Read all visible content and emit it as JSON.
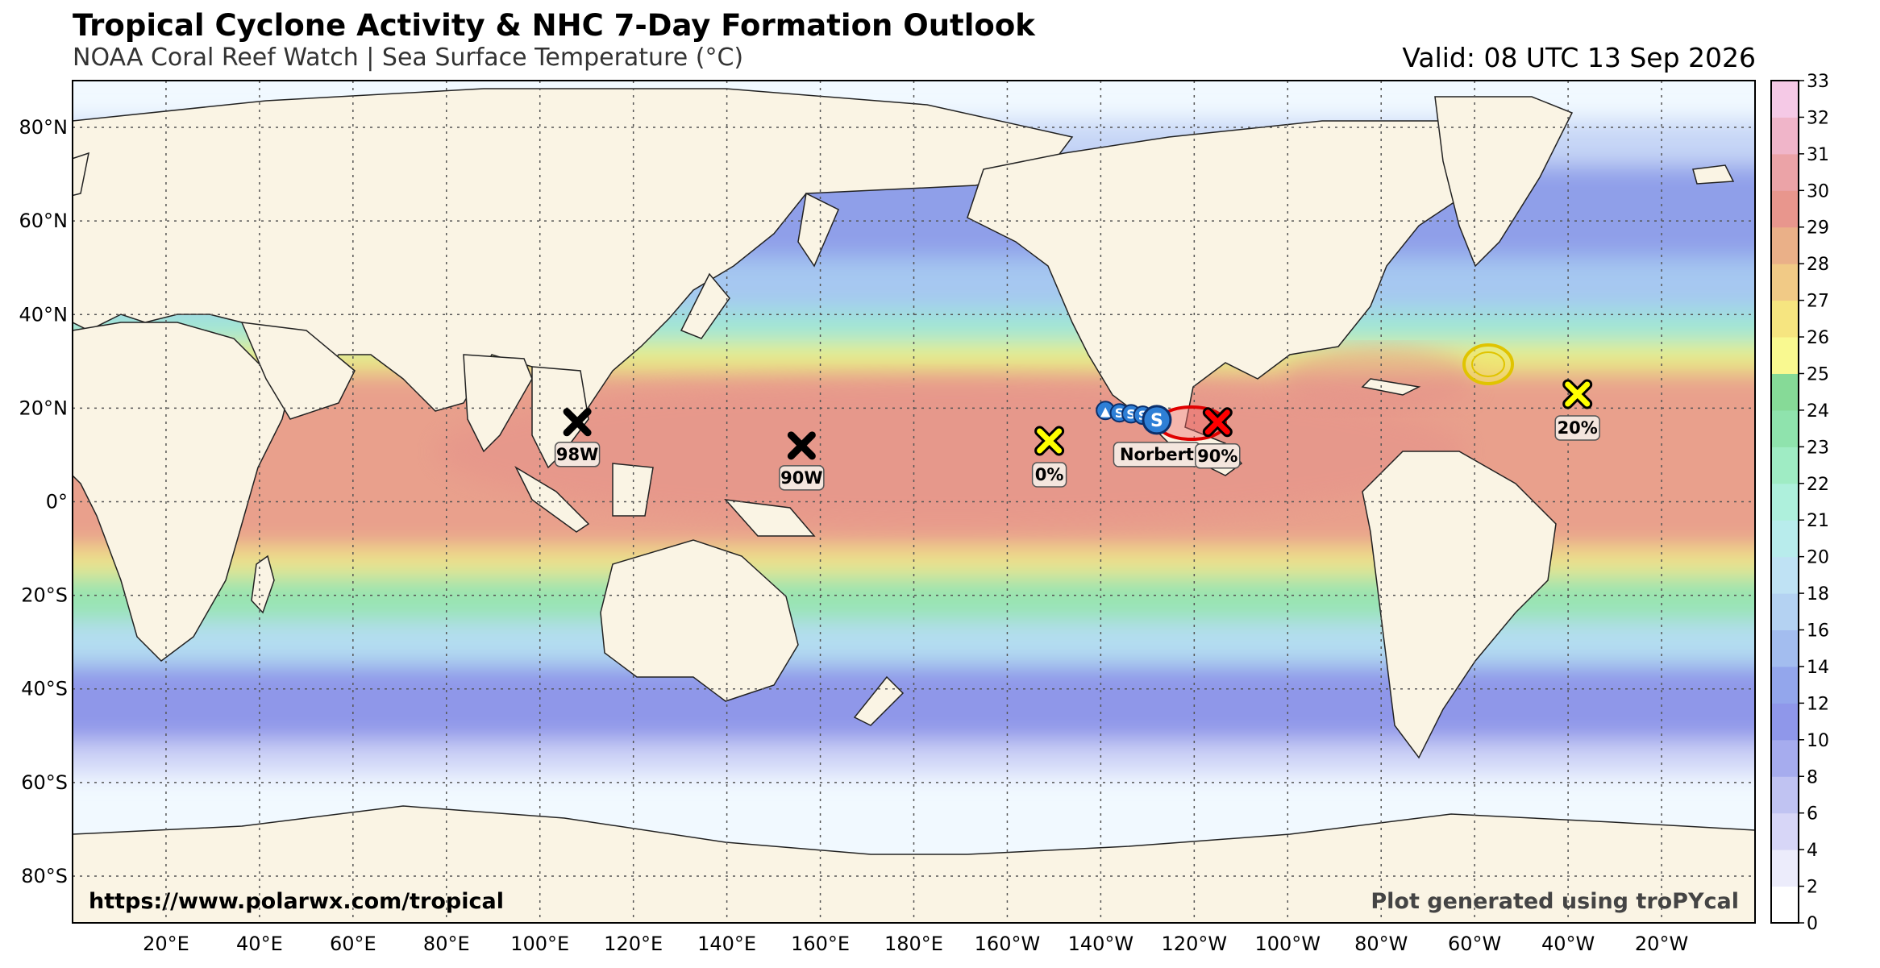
{
  "header": {
    "title": "Tropical Cyclone Activity & NHC 7-Day Formation Outlook",
    "subtitle": "NOAA Coral Reef Watch | Sea Surface Temperature (°C)",
    "valid": "Valid: 08 UTC 13 Sep 2026"
  },
  "map": {
    "projection": "equirectangular",
    "lon_range": [
      0,
      360
    ],
    "lat_range": [
      -90,
      90
    ],
    "lon_ticks": [
      {
        "lon": 20,
        "label": "20°E"
      },
      {
        "lon": 40,
        "label": "40°E"
      },
      {
        "lon": 60,
        "label": "60°E"
      },
      {
        "lon": 80,
        "label": "80°E"
      },
      {
        "lon": 100,
        "label": "100°E"
      },
      {
        "lon": 120,
        "label": "120°E"
      },
      {
        "lon": 140,
        "label": "140°E"
      },
      {
        "lon": 160,
        "label": "160°E"
      },
      {
        "lon": 180,
        "label": "180°E"
      },
      {
        "lon": 200,
        "label": "160°W"
      },
      {
        "lon": 220,
        "label": "140°W"
      },
      {
        "lon": 240,
        "label": "120°W"
      },
      {
        "lon": 260,
        "label": "100°W"
      },
      {
        "lon": 280,
        "label": "80°W"
      },
      {
        "lon": 300,
        "label": "60°W"
      },
      {
        "lon": 320,
        "label": "40°W"
      },
      {
        "lon": 340,
        "label": "20°W"
      }
    ],
    "lat_ticks": [
      {
        "lat": 80,
        "label": "80°N"
      },
      {
        "lat": 60,
        "label": "60°N"
      },
      {
        "lat": 40,
        "label": "40°N"
      },
      {
        "lat": 20,
        "label": "20°N"
      },
      {
        "lat": 0,
        "label": "0°"
      },
      {
        "lat": -20,
        "label": "20°S"
      },
      {
        "lat": -40,
        "label": "40°S"
      },
      {
        "lat": -60,
        "label": "60°S"
      },
      {
        "lat": -80,
        "label": "80°S"
      }
    ],
    "grid": true
  },
  "storms": [
    {
      "id": "98W",
      "type": "invest",
      "lon": 108,
      "lat": 17,
      "label": "98W"
    },
    {
      "id": "90W",
      "type": "invest",
      "lon": 156,
      "lat": 12,
      "label": "90W"
    },
    {
      "id": "norbert",
      "type": "tropical-storm",
      "lon": 232,
      "lat": 17.5,
      "label": "Norbert",
      "track": [
        {
          "lon": 221,
          "lat": 19.5,
          "symbol": "▲"
        },
        {
          "lon": 224,
          "lat": 19,
          "symbol": "S"
        },
        {
          "lon": 226.5,
          "lat": 18.8,
          "symbol": "S"
        },
        {
          "lon": 229,
          "lat": 18.5,
          "symbol": "S"
        }
      ]
    }
  ],
  "outlooks": [
    {
      "id": "ep-0",
      "lon": 209,
      "lat": 13,
      "probability": "0%",
      "color": "#ffff00"
    },
    {
      "id": "ep-90",
      "lon": 245,
      "lat": 17,
      "probability": "90%",
      "color": "#ff0000"
    },
    {
      "id": "at-20",
      "lon": 322,
      "lat": 23,
      "probability": "20%",
      "color": "#ffff00"
    }
  ],
  "colorbar": {
    "ticks": [
      {
        "v": 0,
        "label": "0"
      },
      {
        "v": 2,
        "label": "2"
      },
      {
        "v": 4,
        "label": "4"
      },
      {
        "v": 6,
        "label": "6"
      },
      {
        "v": 8,
        "label": "8"
      },
      {
        "v": 10,
        "label": "10"
      },
      {
        "v": 12,
        "label": "12"
      },
      {
        "v": 14,
        "label": "14"
      },
      {
        "v": 16,
        "label": "16"
      },
      {
        "v": 18,
        "label": "18"
      },
      {
        "v": 20,
        "label": "20"
      },
      {
        "v": 21,
        "label": "21"
      },
      {
        "v": 22,
        "label": "22"
      },
      {
        "v": 23,
        "label": "23"
      },
      {
        "v": 24,
        "label": "24"
      },
      {
        "v": 25,
        "label": "25"
      },
      {
        "v": 26,
        "label": "26"
      },
      {
        "v": 27,
        "label": "27"
      },
      {
        "v": 28,
        "label": "28"
      },
      {
        "v": 29,
        "label": "29"
      },
      {
        "v": 30,
        "label": "30"
      },
      {
        "v": 31,
        "label": "31"
      },
      {
        "v": 32,
        "label": "32"
      },
      {
        "v": 33,
        "label": "33"
      }
    ],
    "colors": [
      "#ffffff",
      "#ececfb",
      "#d7d6f7",
      "#c0c3f2",
      "#a6acee",
      "#8f97ea",
      "#93a6ec",
      "#a3bdef",
      "#b4d2f2",
      "#bfe2f4",
      "#b8ecec",
      "#aef0dc",
      "#9fecc4",
      "#8fe3ad",
      "#86da97",
      "#f9f990",
      "#f6e580",
      "#f1ca86",
      "#eab088",
      "#e8968d",
      "#eba3a7",
      "#f0b5c9",
      "#f5c9e6"
    ]
  },
  "credits": {
    "left": "https://www.polarwx.com/tropical",
    "right": "Plot generated using troPYcal"
  }
}
